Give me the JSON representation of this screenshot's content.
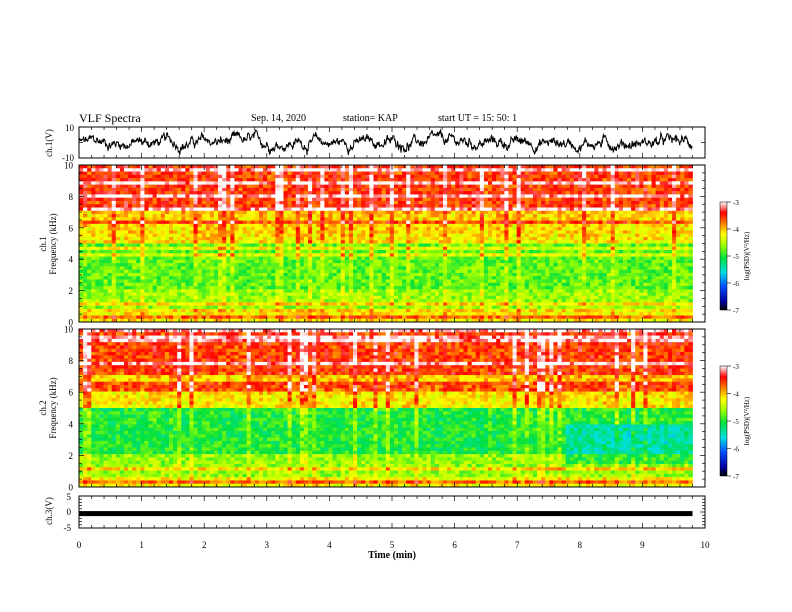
{
  "header": {
    "title": "VLF Spectra",
    "date": "Sep. 14, 2020",
    "station": "station= KAP",
    "start": "start  UT =   15: 50: 1"
  },
  "chart_data": [
    {
      "type": "line",
      "name": "waveform-ch1",
      "ylabel": "ch.1(V)",
      "ylim": [
        -10,
        10
      ],
      "yticks": [
        "10",
        "-10"
      ],
      "xlim": [
        0,
        10
      ],
      "description_values": "noisy waveform roughly between -8 and 8 V spanning 0 to 9.8 min"
    },
    {
      "type": "heatmap",
      "name": "spectrogram-ch1",
      "ylabel": "ch.1\nFrequency (kHz)",
      "ylabel_lines": [
        "ch.1",
        "Frequency (kHz)"
      ],
      "ylim": [
        0,
        10
      ],
      "yticks": [
        "0",
        "2",
        "4",
        "6",
        "8",
        "10"
      ],
      "xlim": [
        0,
        10
      ],
      "colorbar": {
        "label": "log(PSD)(V²/Hz)",
        "range": [
          -7,
          -3
        ],
        "ticks": [
          "-3",
          "-4",
          "-5",
          "-6",
          "-7"
        ]
      }
    },
    {
      "type": "heatmap",
      "name": "spectrogram-ch2",
      "ylabel_lines": [
        "ch.2",
        "Frequency (kHz)"
      ],
      "ylim": [
        0,
        10
      ],
      "yticks": [
        "0",
        "2",
        "4",
        "6",
        "8",
        "10"
      ],
      "xlim": [
        0,
        10
      ],
      "colorbar": {
        "label": "log(PSD)(V²/Hz)",
        "range": [
          -7,
          -3
        ],
        "ticks": [
          "-3",
          "-4",
          "-5",
          "-6",
          "-7"
        ]
      }
    },
    {
      "type": "line",
      "name": "waveform-ch3",
      "ylabel": "ch.3(V)",
      "ylim": [
        -5,
        5
      ],
      "yticks": [
        "5",
        "0",
        "-5"
      ],
      "xlim": [
        0,
        10
      ],
      "xticks": [
        "0",
        "1",
        "2",
        "3",
        "4",
        "5",
        "6",
        "7",
        "8",
        "9",
        "10"
      ],
      "xlabel": "Time (min)",
      "constant_value": -0.5
    }
  ],
  "colors": {
    "axis": "#000000",
    "trace": "#000000"
  }
}
